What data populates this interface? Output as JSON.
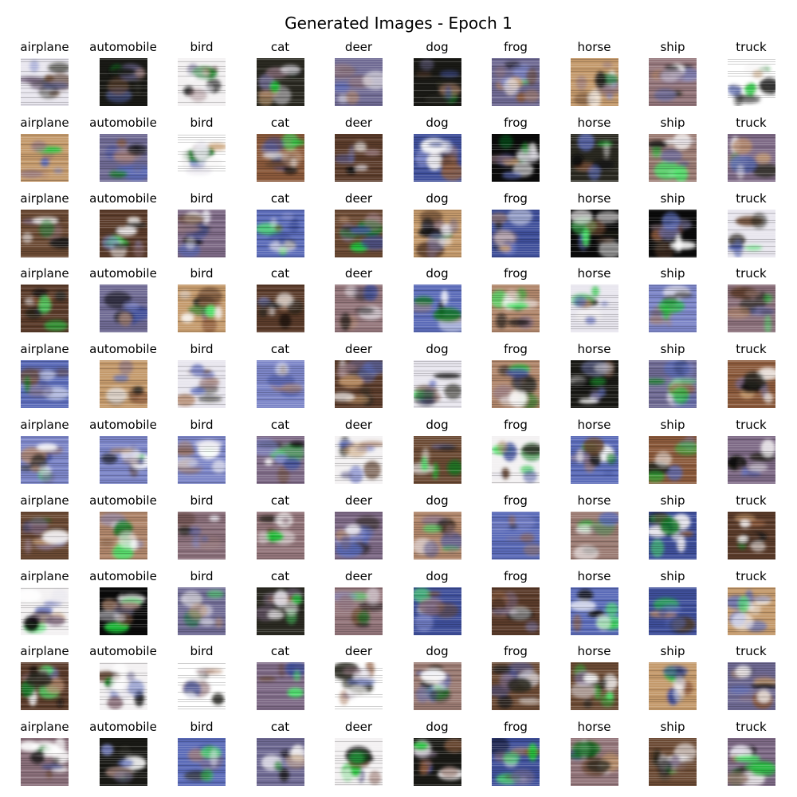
{
  "title": "Generated Images - Epoch 1",
  "classes": [
    "airplane",
    "automobile",
    "bird",
    "cat",
    "deer",
    "dog",
    "frog",
    "horse",
    "ship",
    "truck"
  ],
  "grid": {
    "rows": 10,
    "cols": 10
  },
  "image_alt": "generated sample (noisy blurred color blob)",
  "palette": {
    "muted": [
      "#8a6f7a",
      "#7e6a86",
      "#94767b",
      "#6f6a93",
      "#9a7a72"
    ],
    "warm": [
      "#8b5a3c",
      "#b0866b",
      "#6b4a34",
      "#c49a6c",
      "#5a3b2a"
    ],
    "dark": [
      "#0b0b0b",
      "#1a1a16",
      "#2b2a22"
    ],
    "bright": [
      "#f3f1f2",
      "#e8e6ee",
      "#ffffff"
    ],
    "blue": [
      "#5b6bb8",
      "#7d86c8",
      "#3f4f9a"
    ],
    "green": [
      "#1fc23a",
      "#4be36a",
      "#0e7a22"
    ]
  }
}
